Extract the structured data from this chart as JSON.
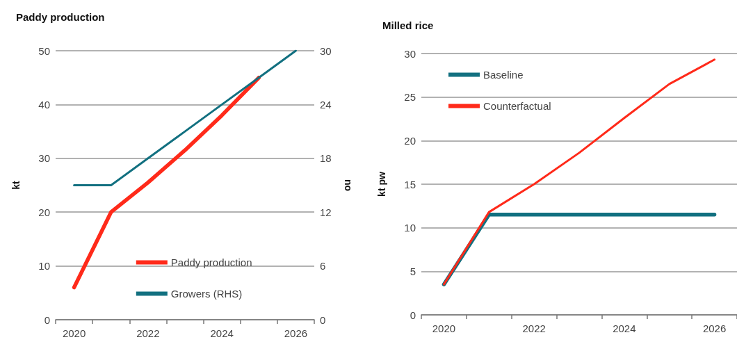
{
  "chart_data": [
    {
      "type": "line",
      "title": "Paddy production",
      "ylabel": "kt",
      "y2label": "no",
      "categories": [
        "2020",
        null,
        "2022",
        null,
        "2024",
        null,
        "2026"
      ],
      "series": [
        {
          "name": "Paddy production",
          "color": "#ff2a1a",
          "values": [
            6,
            20,
            25.5,
            31.5,
            38,
            45,
            null
          ]
        },
        {
          "name": "Growers (RHS)",
          "color": "#127080",
          "axis": "y2",
          "values": [
            15,
            15,
            18,
            21,
            24,
            27,
            30
          ]
        }
      ],
      "ylim": [
        0,
        50
      ],
      "yticks": [
        0,
        10,
        20,
        30,
        40,
        50
      ],
      "y2lim": [
        0,
        30
      ],
      "y2ticks": [
        0,
        6,
        12,
        18,
        24,
        30
      ],
      "grid": "y",
      "legend": "bottom",
      "marker": "none",
      "line_style": "solid"
    },
    {
      "type": "line",
      "title": "Milled rice",
      "ylabel": "kt pw",
      "categories": [
        "2020",
        null,
        "2022",
        null,
        "2024",
        null,
        "2026"
      ],
      "series": [
        {
          "name": "Baseline",
          "color": "#127080",
          "values": [
            3.5,
            11.5,
            11.5,
            11.5,
            11.5,
            11.5,
            11.5
          ]
        },
        {
          "name": "Counterfactual",
          "color": "#ff2a1a",
          "values": [
            3.5,
            11.8,
            15,
            18.6,
            22.6,
            26.5,
            29.3
          ]
        }
      ],
      "ylim": [
        0,
        30
      ],
      "yticks": [
        0,
        5,
        10,
        15,
        20,
        25,
        30
      ],
      "grid": "y",
      "legend": "top left",
      "marker": "none",
      "line_style": "solid"
    }
  ]
}
